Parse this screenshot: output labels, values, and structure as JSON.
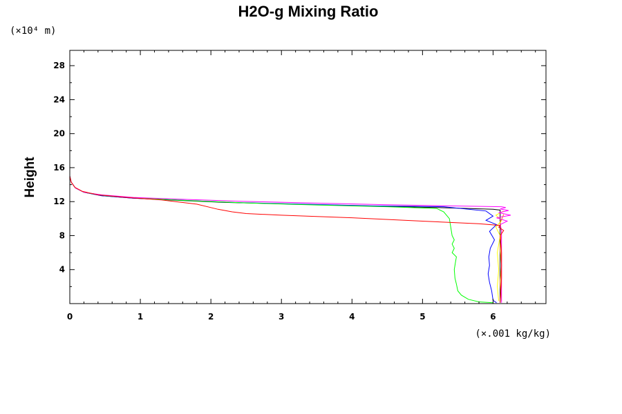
{
  "chart_data": {
    "type": "line",
    "title": "H2O-g Mixing Ratio",
    "ylabel": "Height",
    "xlabel": "",
    "x_unit_label": "(×.001 kg/kg)",
    "y_unit_label": "(×10⁴ m)",
    "xlim": [
      0,
      6.75
    ],
    "ylim": [
      0,
      29.8
    ],
    "x_ticks": [
      0,
      1,
      2,
      3,
      4,
      5,
      6
    ],
    "y_ticks": [
      4,
      8,
      12,
      16,
      20,
      24,
      28
    ],
    "x_tick_labels": [
      "0",
      "1",
      "2",
      "3",
      "4",
      "5",
      "6"
    ],
    "y_tick_labels": [
      "4",
      "8",
      "12",
      "16",
      "20",
      "24",
      "28"
    ],
    "grid": false,
    "legend": "none",
    "series": [
      {
        "color": "#000000",
        "x": [
          6.1,
          6.1,
          6.1,
          6.1,
          6.1,
          6.0,
          5.2,
          4.2,
          3.2,
          2.2,
          1.4,
          0.9,
          0.45,
          0.2,
          0.08,
          0.02,
          0.0,
          0.0
        ],
        "y": [
          0.1,
          4.0,
          8.0,
          10.5,
          11.0,
          11.1,
          11.3,
          11.5,
          11.7,
          11.9,
          12.2,
          12.4,
          12.7,
          13.1,
          13.6,
          14.3,
          15.0,
          29.8
        ]
      },
      {
        "color": "#0000ff",
        "x": [
          6.05,
          6.0,
          5.98,
          5.95,
          5.93,
          5.95,
          5.94,
          5.96,
          6.02,
          5.95,
          6.05,
          5.9,
          6.0,
          5.9,
          5.3,
          4.3,
          3.3,
          2.3,
          1.5,
          0.9,
          0.45,
          0.2,
          0.08,
          0.02,
          0.0,
          0.0
        ],
        "y": [
          0.1,
          0.4,
          1.5,
          2.5,
          3.5,
          4.5,
          5.5,
          6.5,
          7.5,
          8.5,
          9.3,
          9.8,
          10.3,
          10.9,
          11.4,
          11.5,
          11.7,
          11.9,
          12.2,
          12.4,
          12.7,
          13.1,
          13.6,
          14.3,
          15.0,
          17.0
        ]
      },
      {
        "color": "#00ff00",
        "x": [
          6.0,
          5.8,
          5.65,
          5.55,
          5.5,
          5.48,
          5.46,
          5.45,
          5.47,
          5.48,
          5.42,
          5.45,
          5.42,
          5.45,
          5.42,
          5.4,
          5.38,
          5.3,
          5.2,
          4.5,
          3.5,
          2.5,
          1.6,
          1.0,
          0.5,
          0.2,
          0.08,
          0.02,
          0.0
        ],
        "y": [
          0.1,
          0.2,
          0.5,
          1.0,
          1.5,
          2.3,
          3.0,
          4.0,
          5.0,
          5.5,
          6.0,
          6.5,
          7.0,
          7.5,
          8.0,
          9.0,
          10.0,
          10.8,
          11.2,
          11.4,
          11.6,
          11.85,
          12.15,
          12.4,
          12.7,
          13.1,
          13.6,
          14.3,
          15.0
        ]
      },
      {
        "color": "#ffff00",
        "x": [
          6.08,
          6.06,
          6.08,
          6.06,
          6.1,
          6.04,
          6.12,
          6.04,
          6.15
        ],
        "y": [
          0.3,
          2.0,
          4.0,
          6.0,
          8.0,
          9.0,
          9.8,
          10.4,
          10.9
        ]
      },
      {
        "color": "#ff8c00",
        "x": [
          6.12,
          6.1,
          6.12,
          6.1,
          6.12,
          6.1,
          6.15
        ],
        "y": [
          0.3,
          2.5,
          4.5,
          6.5,
          8.5,
          9.5,
          10.5
        ]
      },
      {
        "color": "#ff00ff",
        "x": [
          6.12,
          6.12,
          6.12,
          6.12,
          6.1,
          6.2,
          6.05,
          6.25,
          6.08,
          6.22,
          6.1,
          6.18,
          6.12,
          5.4,
          4.4,
          3.4,
          2.4,
          1.5,
          0.9,
          0.45,
          0.2,
          0.08,
          0.02,
          0.0,
          0.0
        ],
        "y": [
          0.1,
          3.0,
          6.0,
          8.5,
          9.3,
          9.7,
          10.1,
          10.4,
          10.7,
          10.95,
          11.15,
          11.3,
          11.4,
          11.5,
          11.65,
          11.85,
          12.05,
          12.3,
          12.5,
          12.8,
          13.1,
          13.6,
          14.3,
          15.0,
          29.8
        ]
      },
      {
        "color": "#ff0000",
        "x": [
          6.1,
          6.12,
          6.12,
          6.1,
          6.15,
          6.08,
          6.1,
          5.8,
          5.0,
          4.0,
          3.0,
          2.5,
          2.3,
          2.1,
          1.8,
          1.3,
          0.8,
          0.4,
          0.18,
          0.07,
          0.02,
          0.0,
          0.0
        ],
        "y": [
          0.1,
          3.0,
          6.0,
          8.0,
          8.6,
          9.0,
          9.2,
          9.4,
          9.7,
          10.1,
          10.4,
          10.6,
          10.8,
          11.1,
          11.7,
          12.2,
          12.5,
          12.8,
          13.2,
          13.7,
          14.3,
          15.0,
          16.0
        ]
      }
    ]
  }
}
